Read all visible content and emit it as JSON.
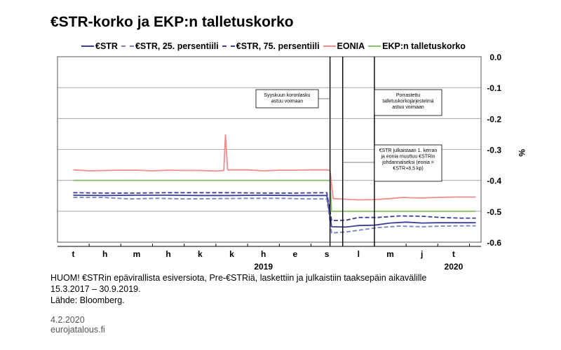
{
  "title": "€STR-korko ja EKP:n talletuskorko",
  "note_lines": [
    "HUOM! €STRin epävirallista esiversiota, Pre-€STRiä, laskettiin ja julkaistiin taaksepäin aikavälille",
    "15.3.2017 – 30.9.2019.",
    "Lähde: Bloomberg."
  ],
  "date": "4.2.2020",
  "site": "eurojatalous.fi",
  "chart_data": {
    "type": "line",
    "ylabel": "%",
    "ylim": [
      -0.6,
      0.0
    ],
    "yticks": [
      "0.0",
      "-0.1",
      "-0.2",
      "-0.3",
      "-0.4",
      "-0.5",
      "-0.6"
    ],
    "x_months": [
      "t",
      "h",
      "m",
      "h",
      "k",
      "k",
      "h",
      "e",
      "s",
      "l",
      "m",
      "j",
      "t"
    ],
    "x_years": [
      {
        "label": "2019",
        "month_index": 6
      },
      {
        "label": "2020",
        "month_index": 12
      }
    ],
    "series": [
      {
        "name": "€STR",
        "color": "#3b3e98",
        "style": "solid",
        "points": [
          [
            0,
            -0.448
          ],
          [
            1,
            -0.449
          ],
          [
            2,
            -0.448
          ],
          [
            3,
            -0.448
          ],
          [
            4,
            -0.449
          ],
          [
            5,
            -0.449
          ],
          [
            6,
            -0.448
          ],
          [
            7,
            -0.449
          ],
          [
            8,
            -0.449
          ],
          [
            8.15,
            -0.55
          ],
          [
            8.6,
            -0.551
          ],
          [
            9,
            -0.546
          ],
          [
            9.5,
            -0.545
          ],
          [
            10,
            -0.538
          ],
          [
            10.5,
            -0.535
          ],
          [
            11,
            -0.538
          ],
          [
            11.5,
            -0.537
          ],
          [
            12,
            -0.537
          ],
          [
            12.7,
            -0.537
          ]
        ]
      },
      {
        "name": "€STR, 25. persentiili",
        "color": "#7a80c4",
        "style": "dashed",
        "points": [
          [
            0,
            -0.455
          ],
          [
            0.9,
            -0.455
          ],
          [
            1.8,
            -0.46
          ],
          [
            2.6,
            -0.458
          ],
          [
            3.6,
            -0.46
          ],
          [
            4.6,
            -0.459
          ],
          [
            5.6,
            -0.458
          ],
          [
            6.6,
            -0.458
          ],
          [
            7.4,
            -0.46
          ],
          [
            8,
            -0.46
          ],
          [
            8.15,
            -0.57
          ],
          [
            8.6,
            -0.567
          ],
          [
            9.1,
            -0.56
          ],
          [
            9.6,
            -0.553
          ],
          [
            10.3,
            -0.548
          ],
          [
            11,
            -0.55
          ],
          [
            11.6,
            -0.548
          ],
          [
            12.2,
            -0.547
          ],
          [
            12.7,
            -0.547
          ]
        ]
      },
      {
        "name": "€STR, 75. persentiili",
        "color": "#3b3e98",
        "style": "dashed",
        "points": [
          [
            0,
            -0.44
          ],
          [
            1,
            -0.441
          ],
          [
            2,
            -0.441
          ],
          [
            3,
            -0.44
          ],
          [
            4,
            -0.44
          ],
          [
            5,
            -0.44
          ],
          [
            6,
            -0.441
          ],
          [
            7,
            -0.441
          ],
          [
            8,
            -0.44
          ],
          [
            8.15,
            -0.53
          ],
          [
            8.6,
            -0.529
          ],
          [
            9,
            -0.52
          ],
          [
            9.6,
            -0.52
          ],
          [
            10.3,
            -0.515
          ],
          [
            11,
            -0.516
          ],
          [
            11.6,
            -0.52
          ],
          [
            12.2,
            -0.522
          ],
          [
            12.7,
            -0.522
          ]
        ]
      },
      {
        "name": "EONIA",
        "color": "#f08c8c",
        "style": "solid",
        "points": [
          [
            0,
            -0.366
          ],
          [
            0.5,
            -0.369
          ],
          [
            1,
            -0.368
          ],
          [
            1.5,
            -0.367
          ],
          [
            2,
            -0.367
          ],
          [
            2.5,
            -0.369
          ],
          [
            3,
            -0.367
          ],
          [
            3.5,
            -0.368
          ],
          [
            4,
            -0.368
          ],
          [
            4.5,
            -0.37
          ],
          [
            4.75,
            -0.368
          ],
          [
            4.8,
            -0.253
          ],
          [
            4.87,
            -0.366
          ],
          [
            5.5,
            -0.366
          ],
          [
            6,
            -0.369
          ],
          [
            6.5,
            -0.367
          ],
          [
            7,
            -0.367
          ],
          [
            7.5,
            -0.366
          ],
          [
            8,
            -0.366
          ],
          [
            8.1,
            -0.368
          ],
          [
            8.2,
            -0.459
          ],
          [
            8.6,
            -0.461
          ],
          [
            9,
            -0.463
          ],
          [
            9.5,
            -0.462
          ],
          [
            10,
            -0.459
          ],
          [
            10.4,
            -0.455
          ],
          [
            10.6,
            -0.456
          ],
          [
            11,
            -0.457
          ],
          [
            11.5,
            -0.455
          ],
          [
            12,
            -0.454
          ],
          [
            12.7,
            -0.454
          ]
        ]
      },
      {
        "name": "EKP:n talletuskorko",
        "color": "#8cbe6e",
        "style": "solid",
        "points": [
          [
            0,
            -0.4
          ],
          [
            8.1,
            -0.4
          ],
          [
            8.15,
            -0.5
          ],
          [
            12.7,
            -0.5
          ]
        ]
      }
    ],
    "markers": [
      {
        "month_index": 8.1,
        "text": [
          "Syyskuun koronlasku",
          "astuu voimaan"
        ]
      },
      {
        "month_index": 8.5,
        "text": [
          "€STR julkaistaan 1. kerran",
          "ja eonia muuttuu €STRin",
          "johdannaiseksi (eonia =",
          "€STR+8,5 kp)"
        ]
      },
      {
        "month_index": 9.5,
        "text": [
          "Porrastettu",
          "talletuskorkojärjestelmä",
          "astuu voimaan"
        ]
      }
    ]
  }
}
